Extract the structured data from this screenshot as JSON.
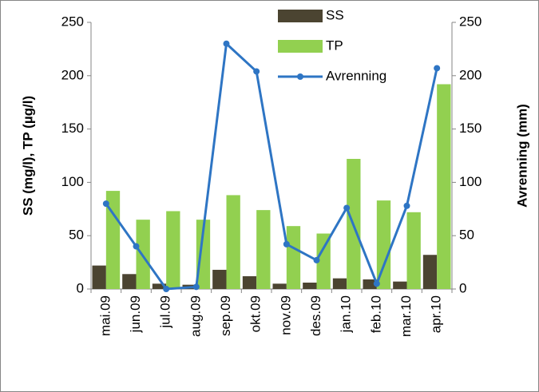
{
  "chart_data": {
    "type": "bar-line",
    "categories": [
      "mai.09",
      "jun.09",
      "jul.09",
      "aug.09",
      "sep.09",
      "okt.09",
      "nov.09",
      "des.09",
      "jan.10",
      "feb.10",
      "mar.10",
      "apr.10"
    ],
    "series": [
      {
        "name": "SS",
        "type": "bar",
        "color": "#4b4431",
        "values": [
          22,
          14,
          5,
          4,
          18,
          12,
          5,
          6,
          10,
          9,
          7,
          32
        ]
      },
      {
        "name": "TP",
        "type": "bar",
        "color": "#92d050",
        "values": [
          92,
          65,
          73,
          65,
          88,
          74,
          59,
          52,
          122,
          83,
          72,
          192
        ]
      },
      {
        "name": "Avrenning",
        "type": "line",
        "axis": "y2",
        "color": "#2e75c4",
        "values": [
          80,
          40,
          0,
          2,
          230,
          204,
          42,
          27,
          76,
          5,
          78,
          207
        ]
      }
    ],
    "y_label": "SS (mg/l), TP (µg/l)",
    "y2_label": "Avrenning (mm)",
    "ylim": [
      0,
      250
    ],
    "yticks": [
      0,
      50,
      100,
      150,
      200,
      250
    ],
    "y2lim": [
      0,
      250
    ],
    "y2ticks": [
      0,
      50,
      100,
      150,
      200,
      250
    ],
    "legend": "top"
  }
}
